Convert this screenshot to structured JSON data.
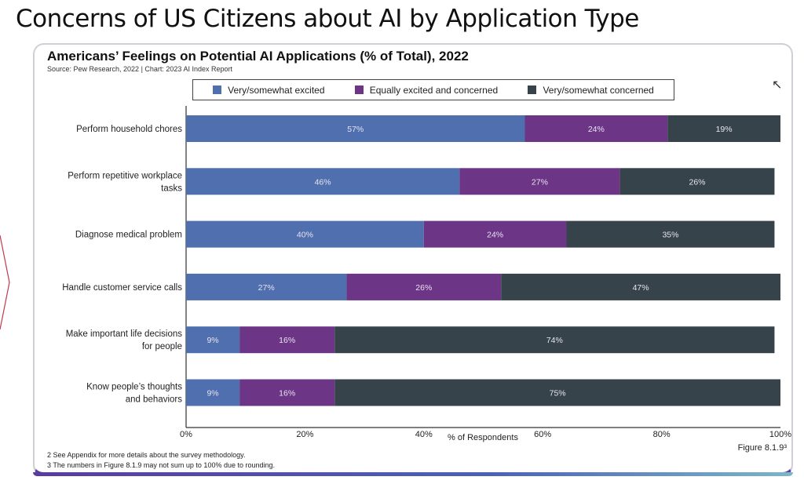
{
  "slide": {
    "title": "Concerns of US Citizens about AI by Application Type"
  },
  "colors": {
    "excited": "#4f6fae",
    "equal": "#6c3586",
    "concerned": "#37434a"
  },
  "chart_data": {
    "type": "bar",
    "orientation": "horizontal",
    "stacked": true,
    "title": "Americans’ Feelings on Potential AI Applications (% of Total), 2022",
    "subtitle": "Source: Pew Research, 2022 | Chart: 2023 AI Index Report",
    "xlabel": "% of Respondents",
    "ylabel": "",
    "xlim": [
      0,
      100
    ],
    "xticks": [
      "0%",
      "20%",
      "40%",
      "60%",
      "80%",
      "100%"
    ],
    "legend_position": "top",
    "grid": false,
    "categories": [
      "Perform household chores",
      "Perform repetitive workplace tasks",
      "Diagnose medical problem",
      "Handle customer service calls",
      "Make important life decisions for people",
      "Know people’s thoughts and behaviors"
    ],
    "category_lines": [
      [
        "Perform household chores"
      ],
      [
        "Perform repetitive workplace",
        "tasks"
      ],
      [
        "Diagnose medical problem"
      ],
      [
        "Handle customer service calls"
      ],
      [
        "Make important life decisions",
        "for people"
      ],
      [
        "Know people’s thoughts",
        "and behaviors"
      ]
    ],
    "series": [
      {
        "name": "Very/somewhat excited",
        "color": "#4f6fae",
        "values": [
          57,
          46,
          40,
          27,
          9,
          9
        ]
      },
      {
        "name": "Equally excited and concerned",
        "color": "#6c3586",
        "values": [
          24,
          27,
          24,
          26,
          16,
          16
        ]
      },
      {
        "name": "Very/somewhat concerned",
        "color": "#37434a",
        "values": [
          19,
          26,
          35,
          47,
          74,
          75
        ]
      }
    ]
  },
  "footnotes": [
    "2 See Appendix for more details about the survey methodology.",
    "3 The numbers in Figure 8.1.9 may not sum up to 100% due to rounding."
  ],
  "figure_label": "Figure 8.1.9³"
}
